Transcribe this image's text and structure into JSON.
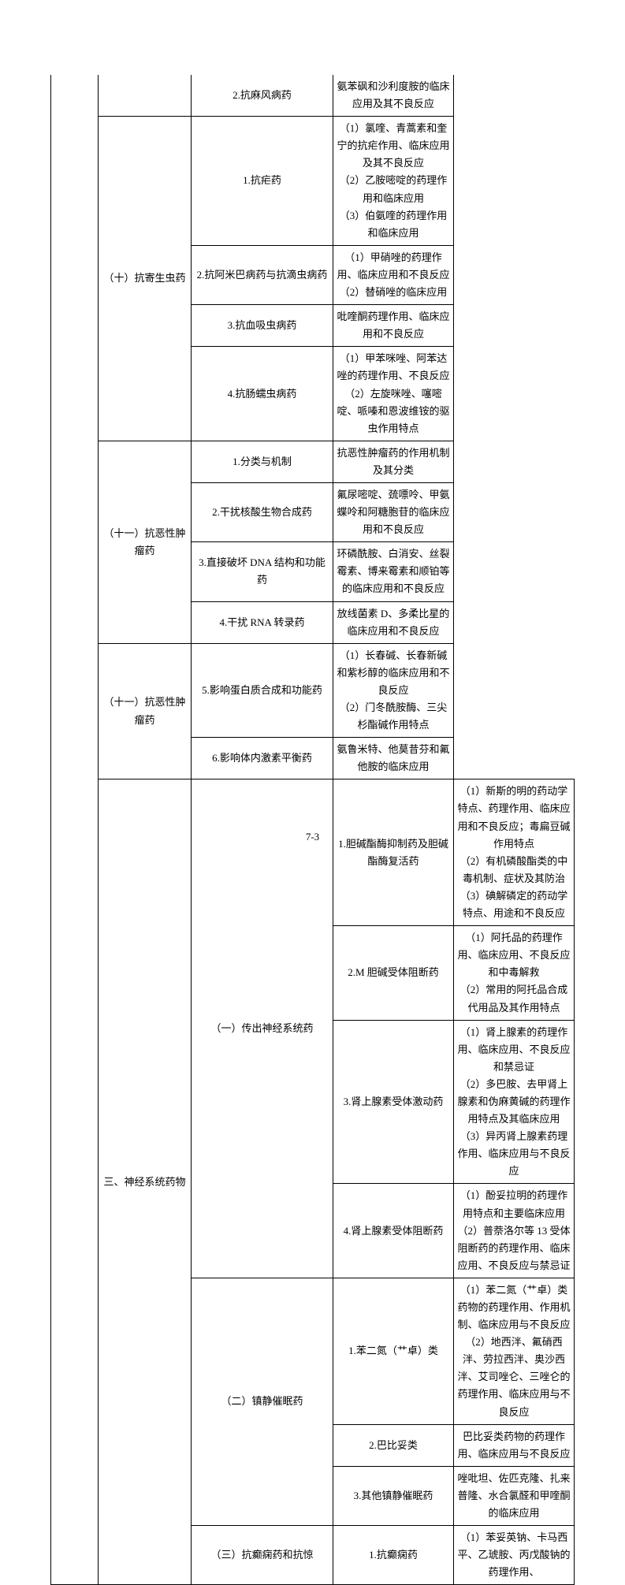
{
  "page_number": "7-3",
  "col_widths": {
    "c1": 60,
    "c2": 118,
    "c3": 180,
    "c4": 307
  },
  "rows": [
    {
      "c1": "",
      "c2": "",
      "c3": "2.抗麻风病药",
      "c4": "氨苯砜和沙利度胺的临床应用及其不良反应",
      "c1_span": 20,
      "c1_notop": true,
      "c2_notop": true,
      "c3_notop": true,
      "c4_notop": true
    },
    {
      "c2": "（十）抗寄生虫药",
      "c2_span": 4,
      "c3": "1.抗疟药",
      "c4": "（1）氯喹、青蒿素和奎宁的抗疟作用、临床应用及其不良反应\n（2）乙胺嘧啶的药理作用和临床应用\n（3）伯氨喹的药理作用和临床应用"
    },
    {
      "c3": "2.抗阿米巴病药与抗滴虫病药",
      "c4": "（1）甲硝唑的药理作用、临床应用和不良反应\n（2）替硝唑的临床应用"
    },
    {
      "c3": "3.抗血吸虫病药",
      "c4": "吡喹酮药理作用、临床应用和不良反应"
    },
    {
      "c3": "4.抗肠蠕虫病药",
      "c4": "（1）甲苯咪唑、阿苯达唑的药理作用、不良反应\n（2）左旋咪唑、噻嘧啶、哌嗪和恩波维铵的驱虫作用特点"
    },
    {
      "c2": "（十一）抗恶性肿瘤药",
      "c2_span": 4,
      "c3": "1.分类与机制",
      "c4": "抗恶性肿瘤药的作用机制及其分类"
    },
    {
      "c3": "2.干扰核酸生物合成药",
      "c4": "氟尿嘧啶、巯嘌呤、甲氨蝶呤和阿糖胞苷的临床应用和不良反应"
    },
    {
      "c3": "3.直接破坏 DNA 结构和功能药",
      "c4": "环磷酰胺、白消安、丝裂霉素、博来霉素和顺铂等的临床应用和不良反应"
    },
    {
      "c3": "4.干扰 RNA 转录药",
      "c4": "放线菌素 D、多柔比星的临床应用和不良反应"
    },
    {
      "c2": "（十一）抗恶性肿瘤药",
      "c2_span": 2,
      "c3": "5.影响蛋白质合成和功能药",
      "c4": "（1）长春碱、长春新碱和紫杉醇的临床应用和不良反应\n（2）门冬酰胺酶、三尖杉酯碱作用特点"
    },
    {
      "c3": "6.影响体内激素平衡药",
      "c4": "氨鲁米特、他莫昔芬和氟他胺的临床应用"
    },
    {
      "c1": "三、神经系统药物",
      "c1_span": 9,
      "c2": "（一）传出神经系统药",
      "c2_span": 4,
      "c3": "1.胆碱酯酶抑制药及胆碱酯酶复活药",
      "c4": "（1）新斯的明的药动学特点、药理作用、临床应用和不良反应；毒扁豆碱作用特点\n（2）有机磷酸酯类的中毒机制、症状及其防治\n（3）碘解磷定的药动学特点、用途和不良反应"
    },
    {
      "c3": "2.M 胆碱受体阻断药",
      "c4": "（1）阿托品的药理作用、临床应用、不良反应和中毒解救\n（2）常用的阿托品合成代用品及其作用特点"
    },
    {
      "c3": "3.肾上腺素受体激动药",
      "c4": "（1）肾上腺素的药理作用、临床应用、不良反应和禁忌证\n（2）多巴胺、去甲肾上腺素和伪麻黄碱的药理作用特点及其临床应用\n（3）异丙肾上腺素药理作用、临床应用与不良反应"
    },
    {
      "c3": "4.肾上腺素受体阻断药",
      "c4": "（1）酚妥拉明的药理作用特点和主要临床应用\n（2）普萘洛尔等 13 受体阻断药的药理作用、临床应用、不良反应与禁忌证"
    },
    {
      "c2": "（二）镇静催眠药",
      "c2_span": 3,
      "c3": "1.苯二氮（艹卓）类",
      "c4": "（1）苯二氮（艹卓）类药物的药理作用、作用机制、临床应用与不良反应\n（2）地西泮、氟硝西泮、劳拉西泮、奥沙西泮、艾司唑仑、三唑仑的药理作用、临床应用与不良反应"
    },
    {
      "c3": "2.巴比妥类",
      "c4": "巴比妥类药物的药理作用、临床应用与不良反应"
    },
    {
      "c3": "3.其他镇静催眠药",
      "c4": "唑吡坦、佐匹克隆、扎来普隆、水合氯醛和甲喹酮的临床应用"
    },
    {
      "c2": "（三）抗癫痫药和抗惊",
      "c3": "1.抗癫痫药",
      "c4": "（1）苯妥英钠、卡马西平、乙琥胺、丙戊酸钠的药理作用、"
    }
  ]
}
